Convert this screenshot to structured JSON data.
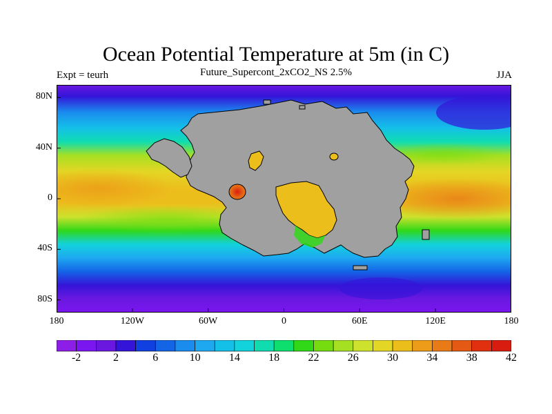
{
  "title": "Ocean Potential Temperature at 5m (in C)",
  "subtitle": "Future_Supercont_2xCO2_NS 2.5%",
  "left_label": "Expt = teurh",
  "right_label": "JJA",
  "map": {
    "projection": "cylindrical-equidistant",
    "lon_range": [
      -180,
      180
    ],
    "lat_range": [
      -90,
      90
    ],
    "land_color": "#a0a0a0",
    "y_ticks": [
      {
        "lat": 80,
        "label": "80N"
      },
      {
        "lat": 40,
        "label": "40N"
      },
      {
        "lat": 0,
        "label": "0"
      },
      {
        "lat": -40,
        "label": "40S"
      },
      {
        "lat": -80,
        "label": "80S"
      }
    ],
    "x_ticks": [
      {
        "lon": -180,
        "label": "180"
      },
      {
        "lon": -120,
        "label": "120W"
      },
      {
        "lon": -60,
        "label": "60W"
      },
      {
        "lon": 0,
        "label": "0"
      },
      {
        "lon": 60,
        "label": "60E"
      },
      {
        "lon": 120,
        "label": "120E"
      },
      {
        "lon": 180,
        "label": "180"
      }
    ]
  },
  "colorbar": {
    "colors": [
      "#8c1ee8",
      "#7a16f0",
      "#6a18e0",
      "#3414d8",
      "#1040e0",
      "#1464e6",
      "#1a8cee",
      "#1ea8f0",
      "#14c0e8",
      "#12d2dc",
      "#10dcb0",
      "#0ede6e",
      "#30d818",
      "#76dc10",
      "#a6e022",
      "#cce22c",
      "#e4d624",
      "#ecbe1c",
      "#ec9c18",
      "#e87a18",
      "#e45a14",
      "#e03010",
      "#d81c10"
    ],
    "tick_labels": [
      "-2",
      "2",
      "6",
      "10",
      "14",
      "18",
      "22",
      "26",
      "30",
      "34",
      "38",
      "42"
    ],
    "tick_positions": [
      1,
      3,
      5,
      7,
      9,
      11,
      13,
      15,
      17,
      19,
      21,
      23
    ]
  }
}
